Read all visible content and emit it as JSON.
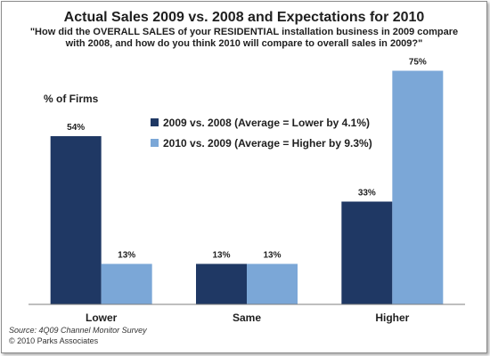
{
  "chart_data": {
    "type": "bar",
    "title": "Actual Sales 2009 vs. 2008 and Expectations for 2010",
    "subtitle_lines": [
      "\"How did the OVERALL SALES of your RESIDENTIAL installation business in 2009 compare",
      "with 2008, and how do you think 2010 will compare to overall sales in 2009?\""
    ],
    "ylabel": "% of Firms",
    "xlabel": "",
    "categories": [
      "Lower",
      "Same",
      "Higher"
    ],
    "series": [
      {
        "name": "2009 vs. 2008 (Average = Lower by 4.1%)",
        "values": [
          54,
          13,
          33
        ],
        "labels": [
          "54%",
          "13%",
          "33%"
        ],
        "color": "#1f3864"
      },
      {
        "name": "2010 vs. 2009 (Average = Higher by 9.3%)",
        "values": [
          13,
          13,
          75
        ],
        "labels": [
          "13%",
          "13%",
          "75%"
        ],
        "color": "#7ba7d7"
      }
    ],
    "ylim": [
      0,
      80
    ],
    "grid": false,
    "legend_position": "center"
  },
  "footer": {
    "source": "Source: 4Q09 Channel Monitor Survey",
    "copyright": "© 2010 Parks Associates"
  }
}
